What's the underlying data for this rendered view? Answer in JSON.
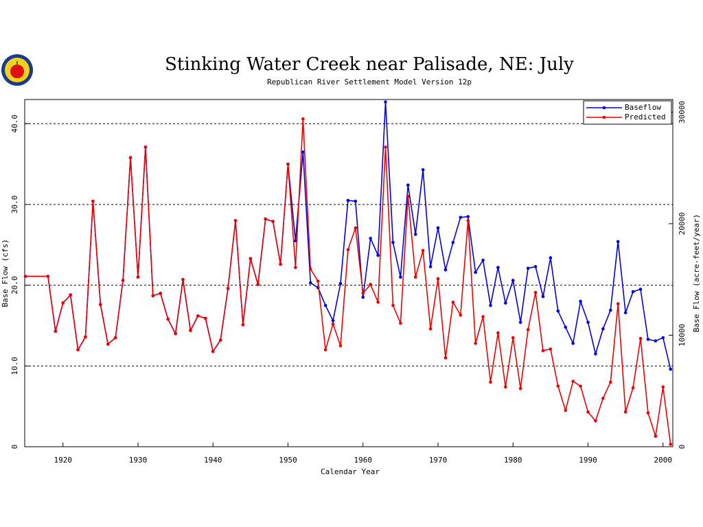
{
  "chart_data": {
    "type": "line",
    "title": "Stinking Water Creek near Palisade, NE: July",
    "subtitle": "Republican River Settlement Model Version 12p",
    "xlabel": "Calendar Year",
    "ylabel": "Base Flow (cfs)",
    "y2label": "Base Flow (acre-feet/year)",
    "x": [
      1915,
      1918,
      1919,
      1920,
      1921,
      1922,
      1923,
      1924,
      1925,
      1926,
      1927,
      1928,
      1929,
      1930,
      1931,
      1932,
      1933,
      1934,
      1935,
      1936,
      1937,
      1938,
      1939,
      1940,
      1941,
      1942,
      1943,
      1944,
      1945,
      1946,
      1947,
      1948,
      1949,
      1950,
      1951,
      1952,
      1953,
      1954,
      1955,
      1956,
      1957,
      1958,
      1959,
      1960,
      1961,
      1962,
      1963,
      1964,
      1965,
      1966,
      1967,
      1968,
      1969,
      1970,
      1971,
      1972,
      1973,
      1974,
      1975,
      1976,
      1977,
      1978,
      1979,
      1980,
      1981,
      1982,
      1983,
      1984,
      1985,
      1986,
      1987,
      1988,
      1989,
      1990,
      1991,
      1992,
      1993,
      1994,
      1995,
      1996,
      1997,
      1998,
      1999,
      2000,
      2001
    ],
    "series": [
      {
        "name": "Baseflow",
        "color": "#0000dd",
        "values": [
          21.1,
          21.1,
          14.3,
          17.8,
          18.8,
          12.0,
          13.6,
          30.4,
          17.6,
          12.7,
          13.5,
          20.6,
          35.8,
          21.0,
          37.1,
          18.7,
          19.0,
          15.8,
          14.0,
          20.7,
          14.4,
          16.2,
          15.9,
          11.8,
          13.2,
          19.6,
          28.0,
          15.1,
          23.3,
          20.1,
          28.2,
          27.9,
          22.6,
          35.0,
          25.5,
          36.5,
          20.3,
          19.7,
          17.5,
          15.6,
          20.2,
          30.5,
          30.4,
          18.5,
          25.8,
          23.7,
          42.7,
          25.3,
          21.0,
          32.4,
          26.3,
          34.3,
          22.3,
          27.1,
          21.9,
          25.3,
          28.4,
          28.5,
          21.6,
          23.1,
          17.5,
          22.2,
          17.8,
          20.6,
          15.4,
          22.1,
          22.3,
          18.6,
          23.4,
          16.8,
          14.8,
          12.8,
          18.0,
          15.4,
          11.5,
          14.6,
          16.9,
          25.4,
          16.6,
          19.2,
          19.5,
          13.3,
          13.1,
          13.5,
          9.6
        ]
      },
      {
        "name": "Predicted",
        "color": "#ee0000",
        "values": [
          21.1,
          21.1,
          14.3,
          17.8,
          18.8,
          12.0,
          13.6,
          30.4,
          17.6,
          12.7,
          13.5,
          20.6,
          35.8,
          21.0,
          37.1,
          18.7,
          19.0,
          15.8,
          14.0,
          20.7,
          14.4,
          16.2,
          15.9,
          11.8,
          13.2,
          19.6,
          28.0,
          15.1,
          23.3,
          20.1,
          28.2,
          27.9,
          22.6,
          35.0,
          22.2,
          40.6,
          22.0,
          20.5,
          12.0,
          15.2,
          12.5,
          24.4,
          27.1,
          19.0,
          20.1,
          17.9,
          37.1,
          17.5,
          15.3,
          31.0,
          21.0,
          24.3,
          14.6,
          20.8,
          11.0,
          17.9,
          16.3,
          28.0,
          12.8,
          16.1,
          8.0,
          14.1,
          7.4,
          13.5,
          7.2,
          14.5,
          19.1,
          11.9,
          12.1,
          7.5,
          4.5,
          8.1,
          7.5,
          4.3,
          3.2,
          6.0,
          8.0,
          17.7,
          4.3,
          7.3,
          13.4,
          4.2,
          1.3,
          7.4,
          0.3
        ]
      }
    ],
    "xlim": [
      1914.9,
      2001.3
    ],
    "xticks": [
      1920,
      1930,
      1940,
      1950,
      1960,
      1970,
      1980,
      1990,
      2000
    ],
    "ylim": [
      0,
      43
    ],
    "yticks": [
      0,
      {
        "value": 10,
        "label": "10.0"
      },
      {
        "value": 20,
        "label": "20.0"
      },
      {
        "value": 30,
        "label": "30.0"
      },
      {
        "value": 40,
        "label": "40.0"
      }
    ],
    "y2lim": [
      0,
      31132
    ],
    "y2ticks": [
      0,
      10000,
      20000,
      30000
    ],
    "grid": true,
    "legend": "upper right"
  }
}
